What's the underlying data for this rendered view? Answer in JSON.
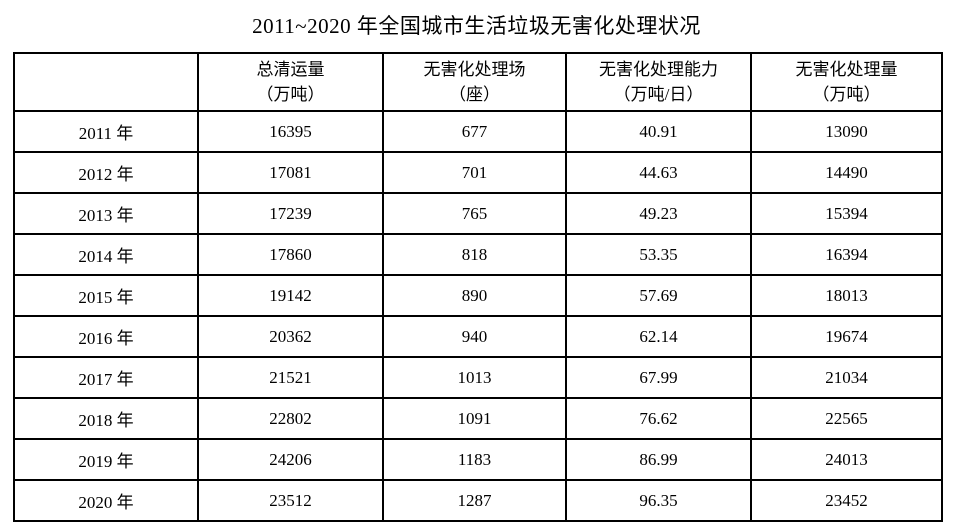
{
  "page": {
    "title": "2011~2020 年全国城市生活垃圾无害化处理状况"
  },
  "table": {
    "headers": [
      {
        "line1": "",
        "line2": ""
      },
      {
        "line1": "总清运量",
        "line2": "（万吨）"
      },
      {
        "line1": "无害化处理场",
        "line2": "（座）"
      },
      {
        "line1": "无害化处理能力",
        "line2": "（万吨/日）"
      },
      {
        "line1": "无害化处理量",
        "line2": "（万吨）"
      }
    ],
    "rows": [
      {
        "year": "2011 年",
        "cells": [
          "16395",
          "677",
          "40.91",
          "13090"
        ]
      },
      {
        "year": "2012 年",
        "cells": [
          "17081",
          "701",
          "44.63",
          "14490"
        ]
      },
      {
        "year": "2013 年",
        "cells": [
          "17239",
          "765",
          "49.23",
          "15394"
        ]
      },
      {
        "year": "2014 年",
        "cells": [
          "17860",
          "818",
          "53.35",
          "16394"
        ]
      },
      {
        "year": "2015 年",
        "cells": [
          "19142",
          "890",
          "57.69",
          "18013"
        ]
      },
      {
        "year": "2016 年",
        "cells": [
          "20362",
          "940",
          "62.14",
          "19674"
        ]
      },
      {
        "year": "2017 年",
        "cells": [
          "21521",
          "1013",
          "67.99",
          "21034"
        ]
      },
      {
        "year": "2018 年",
        "cells": [
          "22802",
          "1091",
          "76.62",
          "22565"
        ]
      },
      {
        "year": "2019 年",
        "cells": [
          "24206",
          "1183",
          "86.99",
          "24013"
        ]
      },
      {
        "year": "2020 年",
        "cells": [
          "23512",
          "1287",
          "96.35",
          "23452"
        ]
      }
    ]
  },
  "chart_data": {
    "type": "table",
    "title": "2011~2020 年全国城市生活垃圾无害化处理状况",
    "columns": [
      "",
      "总清运量（万吨）",
      "无害化处理场（座）",
      "无害化处理能力（万吨/日）",
      "无害化处理量（万吨）"
    ],
    "rows": [
      [
        "2011 年",
        16395,
        677,
        40.91,
        13090
      ],
      [
        "2012 年",
        17081,
        701,
        44.63,
        14490
      ],
      [
        "2013 年",
        17239,
        765,
        49.23,
        15394
      ],
      [
        "2014 年",
        17860,
        818,
        53.35,
        16394
      ],
      [
        "2015 年",
        19142,
        890,
        57.69,
        18013
      ],
      [
        "2016 年",
        20362,
        940,
        62.14,
        19674
      ],
      [
        "2017 年",
        21521,
        1013,
        67.99,
        21034
      ],
      [
        "2018 年",
        22802,
        1091,
        76.62,
        22565
      ],
      [
        "2019 年",
        24206,
        1183,
        86.99,
        24013
      ],
      [
        "2020 年",
        23512,
        1287,
        96.35,
        23452
      ]
    ]
  }
}
